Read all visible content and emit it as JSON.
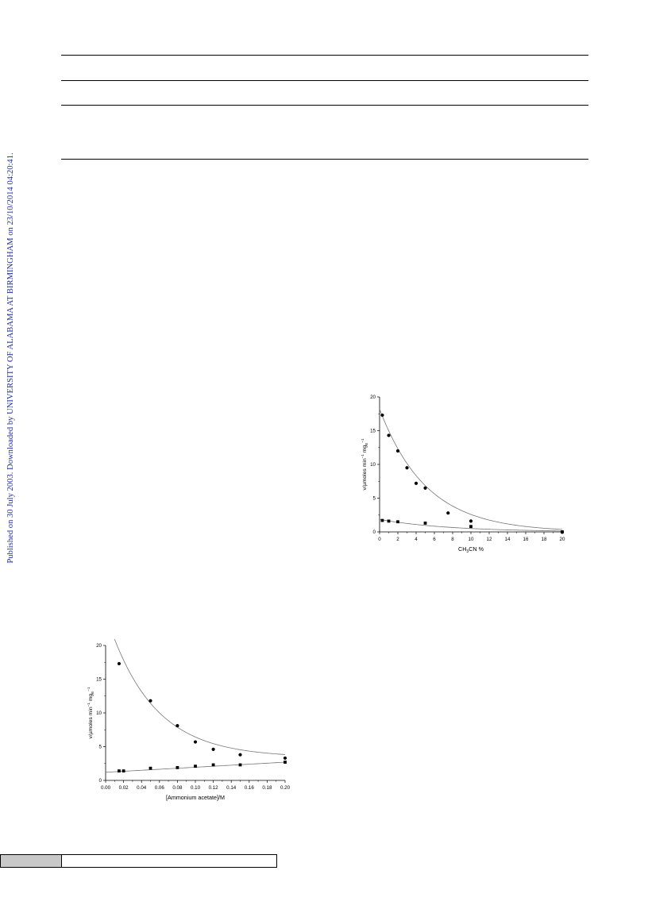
{
  "watermark": "Published on 30 July 2003. Downloaded by UNIVERSITY OF ALABAMA AT BIRMINGHAM on 23/10/2014 04:20:41.",
  "chart_data": [
    {
      "id": "acetonitrile",
      "type": "scatter",
      "xlabel": "CH3CN %",
      "xlabel_main": "CH",
      "xlabel_sub": "3",
      "xlabel_rest": "CN %",
      "ylabel_parts": [
        "v/µmoles min",
        "−1",
        " mg",
        "E",
        "−1"
      ],
      "xlim": [
        0,
        20
      ],
      "ylim": [
        0,
        20
      ],
      "xticks": [
        "0",
        "2",
        "4",
        "6",
        "8",
        "10",
        "12",
        "14",
        "16",
        "18",
        "20"
      ],
      "yticks": [
        "0",
        "5",
        "10",
        "15",
        "20"
      ],
      "series": [
        {
          "marker": "circle",
          "points": [
            [
              0.3,
              17.3
            ],
            [
              1,
              14.3
            ],
            [
              2,
              12.0
            ],
            [
              3,
              9.5
            ],
            [
              4,
              7.2
            ],
            [
              5,
              6.5
            ],
            [
              7.5,
              2.8
            ],
            [
              10,
              1.6
            ],
            [
              20,
              0
            ]
          ],
          "fit": "exp",
          "fit_params": [
            18.2,
            0.195
          ]
        },
        {
          "marker": "square",
          "points": [
            [
              0.3,
              1.7
            ],
            [
              1,
              1.6
            ],
            [
              2,
              1.5
            ],
            [
              5,
              1.3
            ],
            [
              10,
              0.8
            ],
            [
              20,
              0
            ]
          ],
          "fit": "exp",
          "fit_params": [
            1.85,
            0.13
          ]
        }
      ]
    },
    {
      "id": "ammonium",
      "type": "scatter",
      "xlabel": "[Ammonium acetate]/M",
      "ylabel_parts": [
        "v/µmoles min",
        "−1",
        " mg",
        "E",
        "−1"
      ],
      "xlim": [
        0,
        0.2
      ],
      "ylim": [
        0,
        20
      ],
      "xticks": [
        "0.00",
        "0.02",
        "0.04",
        "0.06",
        "0.08",
        "0.10",
        "0.12",
        "0.14",
        "0.16",
        "0.18",
        "0.20"
      ],
      "yticks": [
        "0",
        "5",
        "10",
        "15",
        "20"
      ],
      "series": [
        {
          "marker": "circle",
          "points": [
            [
              0.015,
              17.3
            ],
            [
              0.05,
              11.8
            ],
            [
              0.08,
              8.1
            ],
            [
              0.1,
              5.7
            ],
            [
              0.12,
              4.6
            ],
            [
              0.15,
              3.8
            ],
            [
              0.2,
              3.3
            ]
          ],
          "fit": "exp_offset",
          "fit_params": [
            3.4,
            21.3,
            19.5
          ]
        },
        {
          "marker": "square",
          "points": [
            [
              0.015,
              1.4
            ],
            [
              0.02,
              1.4
            ],
            [
              0.05,
              1.8
            ],
            [
              0.08,
              1.9
            ],
            [
              0.1,
              2.1
            ],
            [
              0.12,
              2.3
            ],
            [
              0.15,
              2.3
            ],
            [
              0.2,
              2.7
            ]
          ],
          "fit": "linear",
          "fit_params": [
            1.2,
            7.5
          ]
        }
      ]
    }
  ]
}
